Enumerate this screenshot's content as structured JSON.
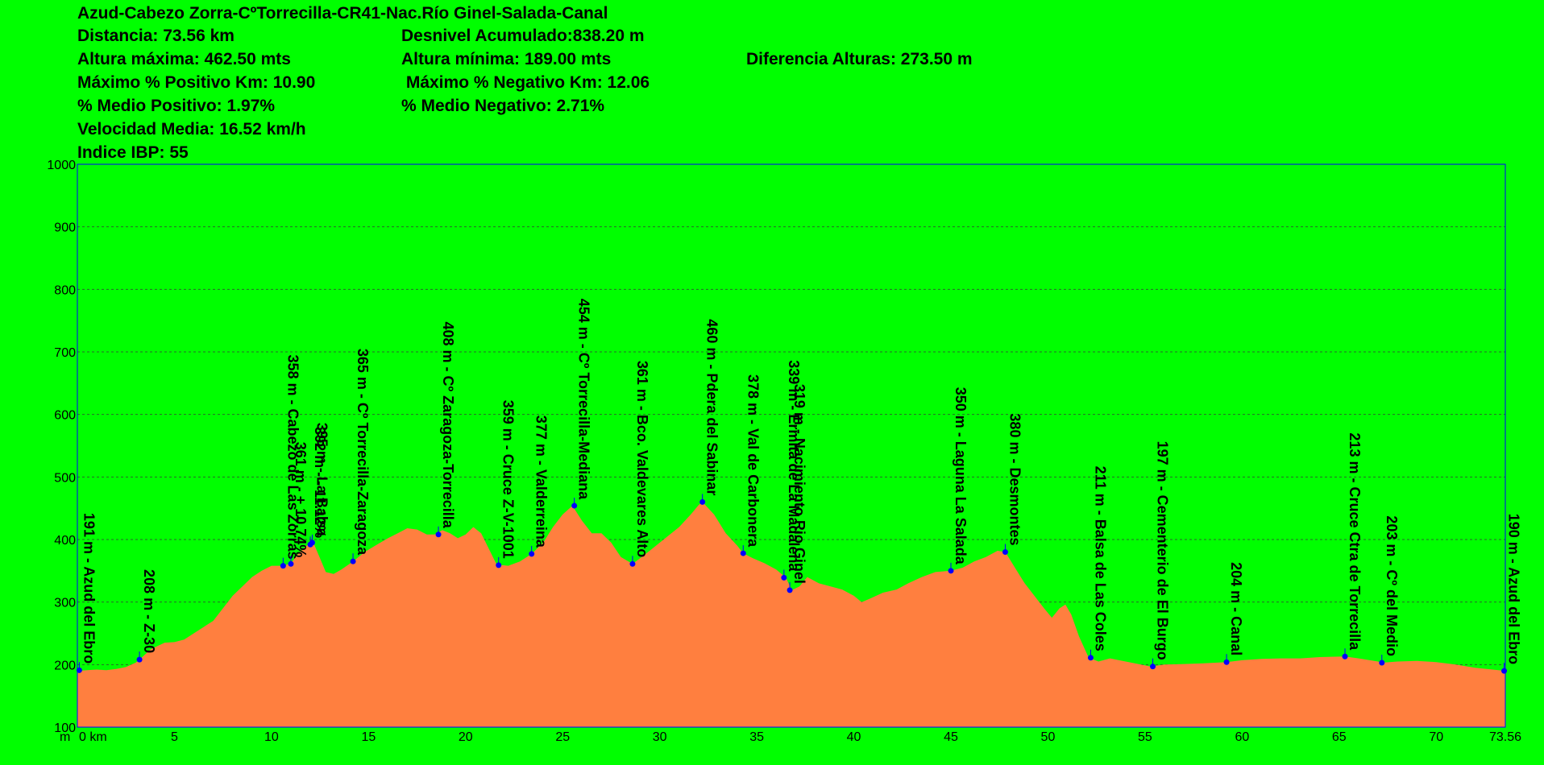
{
  "header": {
    "title": "Azud-Cabezo Zorra-CºTorrecilla-CR41-Nac.Río Ginel-Salada-Canal",
    "distancia": "Distancia: 73.56 km",
    "desnivel": "Desnivel Acumulado:838.20 m",
    "altura_maxima": "Altura máxima: 462.50 mts",
    "altura_minima": "Altura mínima: 189.00 mts",
    "diferencia": "Diferencia Alturas:  273.50 m",
    "max_positivo": "Máximo % Positivo Km: 10.90",
    "max_negativo": " Máximo % Negativo Km: 12.06",
    "medio_positivo": "% Medio Positivo: 1.97%",
    "medio_negativo": "% Medio Negativo: 2.71%",
    "velocidad": "Velocidad Media: 16.52 km/h",
    "ibp": "Indice IBP: 55"
  },
  "chart_data": {
    "type": "area",
    "xlim": [
      0,
      73.56
    ],
    "ylim": [
      100,
      1000
    ],
    "grid": true,
    "x_ticks": [
      0,
      5,
      10,
      15,
      20,
      25,
      30,
      35,
      40,
      45,
      50,
      55,
      60,
      65,
      70,
      73.56
    ],
    "x_tick_labels": [
      "0 km",
      "5",
      "10",
      "15",
      "20",
      "25",
      "30",
      "35",
      "40",
      "45",
      "50",
      "55",
      "60",
      "65",
      "70",
      "73.56"
    ],
    "x_unit_label": "m",
    "y_ticks": [
      100,
      200,
      300,
      400,
      500,
      600,
      700,
      800,
      900,
      1000
    ],
    "y_tick_labels": [
      "100",
      "200",
      "300",
      "400",
      "500",
      "600",
      "700",
      "800",
      "900",
      "1000"
    ],
    "colors": {
      "fill": "#ff7f3f",
      "marker": "#0000ff",
      "grid": "#2a6a2a",
      "frame": "#0000ff",
      "background": "#00ff00"
    },
    "profile": [
      [
        0,
        190
      ],
      [
        0.5,
        191
      ],
      [
        1,
        192
      ],
      [
        1.5,
        191
      ],
      [
        2,
        193
      ],
      [
        2.5,
        196
      ],
      [
        3,
        203
      ],
      [
        3.2,
        208
      ],
      [
        3.8,
        225
      ],
      [
        4.5,
        235
      ],
      [
        5,
        236
      ],
      [
        5.5,
        240
      ],
      [
        6,
        250
      ],
      [
        6.5,
        260
      ],
      [
        7,
        270
      ],
      [
        7.5,
        290
      ],
      [
        8,
        310
      ],
      [
        8.5,
        325
      ],
      [
        9,
        340
      ],
      [
        9.5,
        350
      ],
      [
        10,
        358
      ],
      [
        10.6,
        358
      ],
      [
        11,
        362
      ],
      [
        11.4,
        378
      ],
      [
        11.8,
        390
      ],
      [
        12,
        394
      ],
      [
        12.2,
        392
      ],
      [
        12.5,
        370
      ],
      [
        12.8,
        348
      ],
      [
        13.2,
        345
      ],
      [
        13.6,
        352
      ],
      [
        14.2,
        365
      ],
      [
        14.8,
        380
      ],
      [
        15.5,
        393
      ],
      [
        16,
        402
      ],
      [
        16.5,
        410
      ],
      [
        17,
        418
      ],
      [
        17.5,
        416
      ],
      [
        18,
        408
      ],
      [
        18.4,
        408
      ],
      [
        18.8,
        415
      ],
      [
        19.2,
        410
      ],
      [
        19.6,
        402
      ],
      [
        20,
        408
      ],
      [
        20.4,
        420
      ],
      [
        20.8,
        410
      ],
      [
        21.2,
        385
      ],
      [
        21.6,
        360
      ],
      [
        22.2,
        358
      ],
      [
        22.8,
        365
      ],
      [
        23.4,
        377
      ],
      [
        24,
        395
      ],
      [
        24.5,
        420
      ],
      [
        25,
        440
      ],
      [
        25.5,
        454
      ],
      [
        26,
        430
      ],
      [
        26.5,
        410
      ],
      [
        27,
        410
      ],
      [
        27.5,
        395
      ],
      [
        28,
        372
      ],
      [
        28.6,
        361
      ],
      [
        29.2,
        375
      ],
      [
        29.8,
        390
      ],
      [
        30.4,
        405
      ],
      [
        31,
        420
      ],
      [
        31.6,
        440
      ],
      [
        32,
        455
      ],
      [
        32.2,
        460
      ],
      [
        32.8,
        440
      ],
      [
        33.4,
        410
      ],
      [
        34,
        390
      ],
      [
        34.3,
        378
      ],
      [
        34.8,
        370
      ],
      [
        35.4,
        362
      ],
      [
        36,
        352
      ],
      [
        36.5,
        339
      ],
      [
        36.8,
        319
      ],
      [
        37.2,
        325
      ],
      [
        37.6,
        340
      ],
      [
        38.2,
        330
      ],
      [
        38.8,
        325
      ],
      [
        39.4,
        320
      ],
      [
        40,
        310
      ],
      [
        40.4,
        300
      ],
      [
        40.8,
        305
      ],
      [
        41.5,
        315
      ],
      [
        42.2,
        320
      ],
      [
        42.8,
        330
      ],
      [
        43.5,
        340
      ],
      [
        44.2,
        348
      ],
      [
        45,
        350
      ],
      [
        45.6,
        355
      ],
      [
        46.2,
        365
      ],
      [
        46.8,
        372
      ],
      [
        47.4,
        382
      ],
      [
        47.8,
        380
      ],
      [
        48.3,
        355
      ],
      [
        48.8,
        330
      ],
      [
        49.3,
        310
      ],
      [
        49.8,
        290
      ],
      [
        50.2,
        275
      ],
      [
        50.6,
        290
      ],
      [
        50.9,
        296
      ],
      [
        51.2,
        280
      ],
      [
        51.6,
        245
      ],
      [
        52.1,
        211
      ],
      [
        52.6,
        205
      ],
      [
        53.2,
        210
      ],
      [
        54,
        205
      ],
      [
        55.3,
        197
      ],
      [
        56,
        200
      ],
      [
        57,
        201
      ],
      [
        58,
        202
      ],
      [
        59.2,
        204
      ],
      [
        60,
        207
      ],
      [
        61,
        209
      ],
      [
        62,
        210
      ],
      [
        63,
        210
      ],
      [
        64,
        212
      ],
      [
        65.3,
        213
      ],
      [
        66,
        210
      ],
      [
        67,
        205
      ],
      [
        67.2,
        203
      ],
      [
        68,
        205
      ],
      [
        69,
        206
      ],
      [
        70,
        204
      ],
      [
        71,
        200
      ],
      [
        72,
        195
      ],
      [
        73.56,
        190
      ]
    ],
    "markers": [
      {
        "km": 0.1,
        "alt": 191,
        "label": "191 m - Azud del Ebro"
      },
      {
        "km": 3.2,
        "alt": 208,
        "label": "208 m - Z-30"
      },
      {
        "km": 10.6,
        "alt": 358,
        "label": "358 m - Cabezo de Las Zorras"
      },
      {
        "km": 11.0,
        "alt": 361,
        "label": "361 m - + 10.74%"
      },
      {
        "km": 12.0,
        "alt": 392,
        "label": "392 m - - 11.12%"
      },
      {
        "km": 12.1,
        "alt": 395,
        "label": "395 m - La Balsa"
      },
      {
        "km": 14.2,
        "alt": 365,
        "label": "365 m - Cº Torrecilla-Zaragoza"
      },
      {
        "km": 18.6,
        "alt": 408,
        "label": "408 m - Cº Zaragoza-Torrecilla"
      },
      {
        "km": 21.7,
        "alt": 359,
        "label": "359 m - Cruce Z-V-1001"
      },
      {
        "km": 23.4,
        "alt": 377,
        "label": "377 m - Valderreina"
      },
      {
        "km": 25.6,
        "alt": 454,
        "label": "454 m - Cº Torrecilla-Mediana"
      },
      {
        "km": 28.6,
        "alt": 361,
        "label": "361 m - Bco. Valdevares Alto"
      },
      {
        "km": 32.2,
        "alt": 460,
        "label": "460 m - Pdera del Sabinar"
      },
      {
        "km": 34.3,
        "alt": 378,
        "label": "378 m - Val de Carbonera"
      },
      {
        "km": 36.4,
        "alt": 339,
        "label": "339 m - Ermita de La Madalena"
      },
      {
        "km": 36.7,
        "alt": 319,
        "label": "319 m - Nacimiento Rio Ginel"
      },
      {
        "km": 45.0,
        "alt": 350,
        "label": "350 m - Laguna La Salada"
      },
      {
        "km": 47.8,
        "alt": 380,
        "label": "380 m - Desmontes"
      },
      {
        "km": 52.2,
        "alt": 211,
        "label": "211 m - Balsa de Las Coles"
      },
      {
        "km": 55.4,
        "alt": 197,
        "label": "197 m - Cementerio de El Burgo"
      },
      {
        "km": 59.2,
        "alt": 204,
        "label": "204 m - Canal"
      },
      {
        "km": 65.3,
        "alt": 213,
        "label": "213 m - Cruce Ctra de Torrecilla"
      },
      {
        "km": 67.2,
        "alt": 203,
        "label": "203 m - Cº del Medio"
      },
      {
        "km": 73.5,
        "alt": 190,
        "label": "190 m - Azud del Ebro"
      }
    ]
  }
}
